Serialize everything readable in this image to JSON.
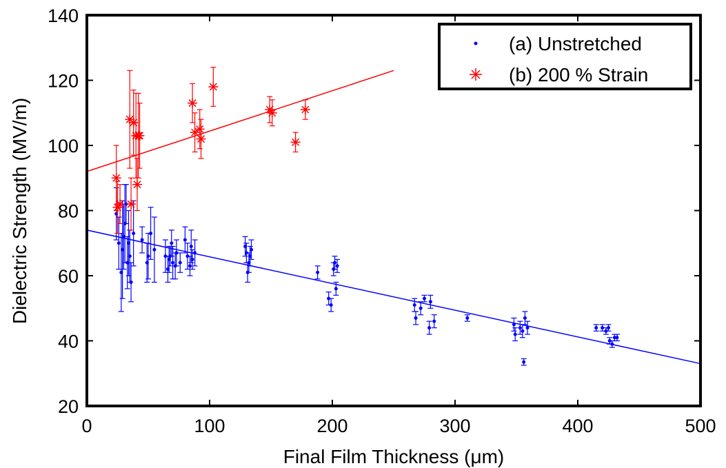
{
  "chart_data": {
    "type": "scatter",
    "title": "",
    "xlabel": "Final Film Thickness (μm)",
    "ylabel": "Dielectric Strength (MV/m)",
    "xlim": [
      0,
      500
    ],
    "ylim": [
      20,
      140
    ],
    "xticks": [
      "0",
      "100",
      "200",
      "300",
      "400",
      "500"
    ],
    "yticks": [
      "20",
      "40",
      "60",
      "80",
      "100",
      "120",
      "140"
    ],
    "grid": false,
    "legend_position": "top-right",
    "colors": {
      "unstretched": "#0000ff",
      "strained": "#ff0000",
      "axis": "#000000"
    },
    "series": [
      {
        "name": "(a) Unstretched",
        "marker": "dot",
        "color": "#0000ff",
        "points": [
          [
            24,
            79,
            8
          ],
          [
            26,
            70,
            8
          ],
          [
            28,
            61,
            12
          ],
          [
            29,
            68,
            15
          ],
          [
            30,
            72,
            10
          ],
          [
            31,
            76,
            12
          ],
          [
            32,
            82,
            6
          ],
          [
            33,
            64,
            8
          ],
          [
            34,
            70,
            10
          ],
          [
            35,
            66,
            8
          ],
          [
            36,
            58,
            6
          ],
          [
            38,
            73,
            10
          ],
          [
            45,
            71,
            4
          ],
          [
            49,
            64,
            6
          ],
          [
            50,
            66,
            7
          ],
          [
            52,
            73,
            8
          ],
          [
            55,
            68,
            10
          ],
          [
            64,
            66,
            5
          ],
          [
            66,
            62,
            4
          ],
          [
            67,
            65,
            4
          ],
          [
            68,
            66,
            3
          ],
          [
            69,
            70,
            4
          ],
          [
            70,
            64,
            5
          ],
          [
            72,
            63,
            4
          ],
          [
            73,
            67,
            4
          ],
          [
            76,
            64,
            3
          ],
          [
            80,
            71,
            4
          ],
          [
            82,
            66,
            4
          ],
          [
            84,
            63,
            3
          ],
          [
            85,
            69,
            5
          ],
          [
            86,
            65,
            3
          ],
          [
            88,
            67,
            4
          ],
          [
            129,
            69,
            3
          ],
          [
            130,
            67,
            3
          ],
          [
            131,
            61,
            3
          ],
          [
            132,
            64,
            3
          ],
          [
            133,
            66,
            3
          ],
          [
            134,
            68,
            3
          ],
          [
            188,
            61,
            2
          ],
          [
            197,
            53,
            2
          ],
          [
            199,
            51,
            2
          ],
          [
            201,
            62,
            2
          ],
          [
            202,
            64,
            2
          ],
          [
            203,
            56,
            2
          ],
          [
            204,
            63,
            2
          ],
          [
            267,
            51,
            2
          ],
          [
            268,
            47,
            2
          ],
          [
            272,
            50,
            2
          ],
          [
            275,
            53,
            1
          ],
          [
            279,
            44,
            2
          ],
          [
            280,
            52,
            2
          ],
          [
            283,
            46,
            2
          ],
          [
            310,
            47,
            1
          ],
          [
            348,
            45,
            2
          ],
          [
            349,
            42,
            2
          ],
          [
            353,
            44,
            2
          ],
          [
            355,
            43,
            2
          ],
          [
            356,
            33.5,
            1
          ],
          [
            357,
            47,
            2
          ],
          [
            359,
            44,
            2
          ],
          [
            415,
            44,
            1
          ],
          [
            420,
            44,
            1
          ],
          [
            423,
            43,
            1
          ],
          [
            425,
            44,
            1
          ],
          [
            426,
            40,
            1
          ],
          [
            428,
            39,
            1
          ],
          [
            430,
            41,
            1
          ],
          [
            432,
            41,
            1
          ]
        ],
        "fit": {
          "x": [
            0,
            500
          ],
          "y": [
            74,
            33
          ]
        }
      },
      {
        "name": "(b) 200 % Strain",
        "marker": "asterisk",
        "color": "#ff0000",
        "points": [
          [
            24,
            90,
            10
          ],
          [
            25,
            81,
            8
          ],
          [
            27,
            82,
            6
          ],
          [
            35,
            108,
            15
          ],
          [
            36,
            82,
            8
          ],
          [
            38,
            107,
            10
          ],
          [
            40,
            103,
            13
          ],
          [
            41,
            88,
            8
          ],
          [
            42,
            103,
            13
          ],
          [
            43,
            103,
            10
          ],
          [
            86,
            113,
            6
          ],
          [
            88,
            104,
            6
          ],
          [
            92,
            105,
            6
          ],
          [
            93,
            102,
            6
          ],
          [
            103,
            118,
            6
          ],
          [
            149,
            111,
            4
          ],
          [
            151,
            110,
            4
          ],
          [
            170,
            101,
            3
          ],
          [
            178,
            111,
            3
          ]
        ],
        "fit": {
          "x": [
            0,
            250
          ],
          "y": [
            92,
            123
          ]
        }
      }
    ]
  }
}
